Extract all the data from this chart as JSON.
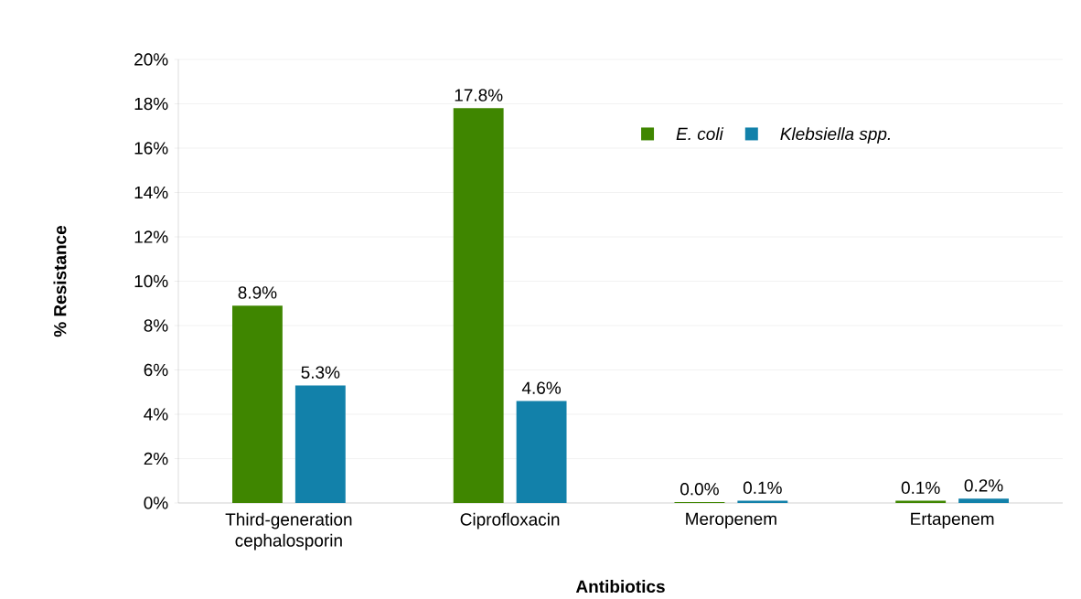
{
  "chart_data": {
    "type": "bar",
    "categories": [
      "Third-generation cephalosporin",
      "Ciprofloxacin",
      "Meropenem",
      "Ertapenem"
    ],
    "series": [
      {
        "name": "E. coli",
        "color": "#3f8600",
        "values": [
          8.9,
          17.8,
          0.04,
          0.1
        ],
        "value_labels": [
          "8.9%",
          "17.8%",
          "0.0%",
          "0.1%"
        ]
      },
      {
        "name": "Klebsiella spp.",
        "color": "#1281aa",
        "values": [
          5.3,
          4.6,
          0.1,
          0.2
        ],
        "value_labels": [
          "5.3%",
          "4.6%",
          "0.1%",
          "0.2%"
        ]
      }
    ],
    "xlabel": "Antibiotics",
    "ylabel": "% Resistance",
    "ylim": [
      0,
      20
    ],
    "yticks": [
      {
        "value": 0,
        "label": "0%"
      },
      {
        "value": 2,
        "label": "2%"
      },
      {
        "value": 4,
        "label": "4%"
      },
      {
        "value": 6,
        "label": "6%"
      },
      {
        "value": 8,
        "label": "8%"
      },
      {
        "value": 10,
        "label": "10%"
      },
      {
        "value": 12,
        "label": "12%"
      },
      {
        "value": 14,
        "label": "14%"
      },
      {
        "value": 16,
        "label": "16%"
      },
      {
        "value": 18,
        "label": "18%"
      },
      {
        "value": 20,
        "label": "20%"
      }
    ],
    "grid": "y",
    "legend": "top right"
  }
}
